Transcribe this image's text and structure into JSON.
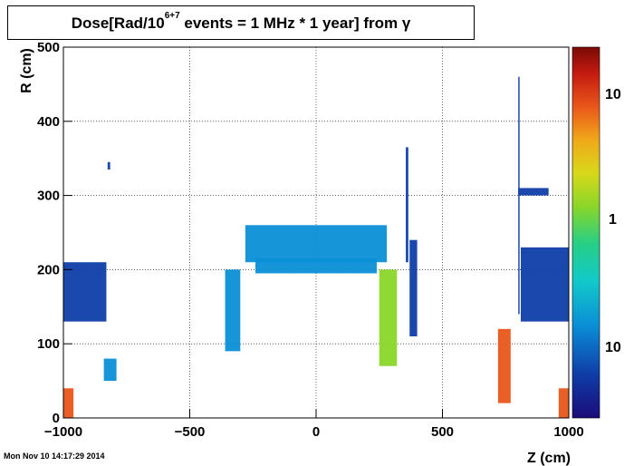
{
  "chart_data": {
    "type": "heatmap",
    "title": {
      "prefix": "Dose[Rad/10",
      "exponent": "6+7",
      "suffix": " events = 1 MHz * 1 year] from γ"
    },
    "xlabel": "Z (cm)",
    "ylabel": "R (cm)",
    "xlim": [
      -1000,
      1000
    ],
    "ylim": [
      0,
      500
    ],
    "x_ticks": [
      -1000,
      -500,
      0,
      500,
      1000
    ],
    "y_ticks": [
      0,
      100,
      200,
      300,
      400,
      500
    ],
    "grid": true,
    "colorbar": {
      "scale": "log",
      "labels": [
        "10",
        "1",
        "10"
      ]
    },
    "regions": [
      {
        "name": "endcap-left-shield",
        "z": [
          -1000,
          -830
        ],
        "r": [
          130,
          210
        ],
        "dose": "low"
      },
      {
        "name": "left-small-blob",
        "z": [
          -840,
          -790
        ],
        "r": [
          50,
          80
        ],
        "dose": "low-mid"
      },
      {
        "name": "left-dot",
        "z": [
          -825,
          -815
        ],
        "r": [
          335,
          345
        ],
        "dose": "low"
      },
      {
        "name": "left-corner-hot",
        "z": [
          -1000,
          -960
        ],
        "r": [
          0,
          40
        ],
        "dose": "high"
      },
      {
        "name": "barrel-ring-top",
        "z": [
          -280,
          280
        ],
        "r": [
          210,
          260
        ],
        "dose": "low-mid"
      },
      {
        "name": "barrel-ring-inner",
        "z": [
          -240,
          240
        ],
        "r": [
          195,
          215
        ],
        "dose": "low-mid"
      },
      {
        "name": "left-barrel-wall",
        "z": [
          -360,
          -300
        ],
        "r": [
          90,
          200
        ],
        "dose": "low-mid"
      },
      {
        "name": "right-barrel-wall",
        "z": [
          250,
          320
        ],
        "r": [
          70,
          200
        ],
        "dose": "mid"
      },
      {
        "name": "right-outer-strip",
        "z": [
          370,
          400
        ],
        "r": [
          110,
          240
        ],
        "dose": "low"
      },
      {
        "name": "right-vertical-line",
        "z": [
          355,
          365
        ],
        "r": [
          210,
          365
        ],
        "dose": "low"
      },
      {
        "name": "endcap-right-shield",
        "z": [
          810,
          1000
        ],
        "r": [
          130,
          230
        ],
        "dose": "low"
      },
      {
        "name": "right-spike",
        "z": [
          800,
          805
        ],
        "r": [
          140,
          460
        ],
        "dose": "low"
      },
      {
        "name": "right-horizontal-arm",
        "z": [
          800,
          920
        ],
        "r": [
          300,
          310
        ],
        "dose": "low"
      },
      {
        "name": "right-forward-hot",
        "z": [
          720,
          770
        ],
        "r": [
          20,
          120
        ],
        "dose": "high"
      },
      {
        "name": "right-corner-hot",
        "z": [
          960,
          1000
        ],
        "r": [
          0,
          40
        ],
        "dose": "high"
      }
    ]
  },
  "footer": {
    "timestamp": "Mon Nov 10 14:17:29 2014"
  }
}
